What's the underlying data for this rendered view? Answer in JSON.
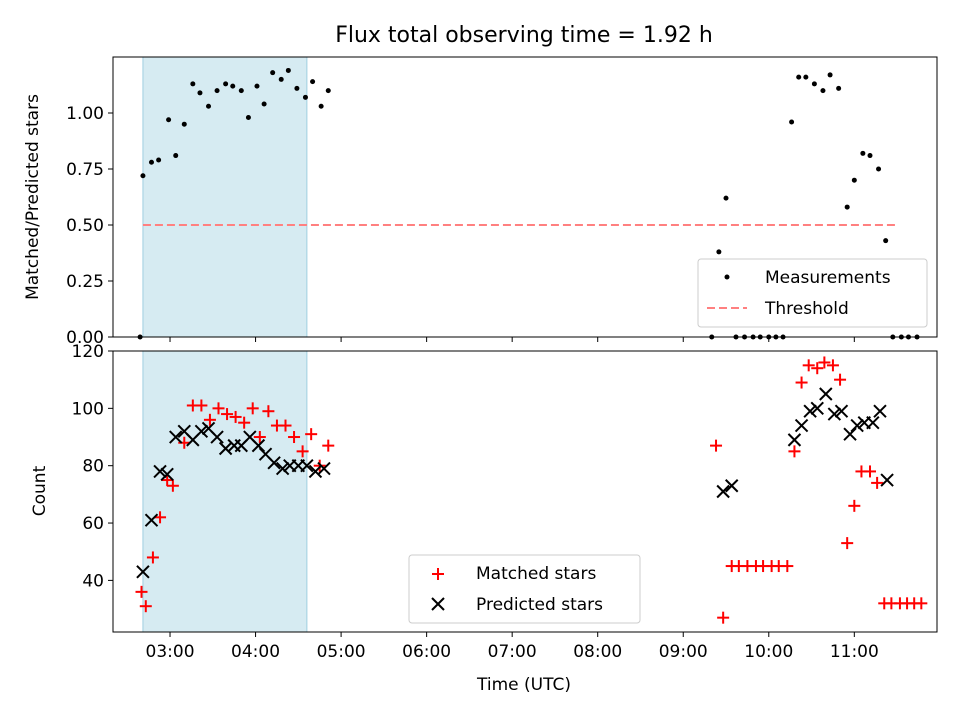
{
  "chart_data": [
    {
      "type": "scatter",
      "title": "Flux total observing time = 1.92 h",
      "xlabel": "",
      "ylabel": "Matched/Predicted stars",
      "xlim": [
        "02:20",
        "11:58"
      ],
      "ylim": [
        0,
        1.25
      ],
      "yticks": [
        "0.00",
        "0.25",
        "0.50",
        "0.75",
        "1.00"
      ],
      "shaded_span": [
        "02:41",
        "04:36"
      ],
      "threshold": {
        "name": "Threshold",
        "value": 0.5,
        "x_range": [
          "02:41",
          "11:30"
        ],
        "color": "#ff8080"
      },
      "legend": {
        "placement": "lower-right",
        "entries": [
          "Measurements",
          "Threshold"
        ]
      },
      "series": [
        {
          "name": "Measurements",
          "color": "#000000",
          "points": [
            [
              "02:39",
              0.0
            ],
            [
              "02:41",
              0.72
            ],
            [
              "02:47",
              0.78
            ],
            [
              "02:52",
              0.79
            ],
            [
              "02:59",
              0.97
            ],
            [
              "03:04",
              0.81
            ],
            [
              "03:10",
              0.95
            ],
            [
              "03:16",
              1.13
            ],
            [
              "03:21",
              1.09
            ],
            [
              "03:27",
              1.03
            ],
            [
              "03:33",
              1.1
            ],
            [
              "03:39",
              1.13
            ],
            [
              "03:44",
              1.12
            ],
            [
              "03:50",
              1.1
            ],
            [
              "03:55",
              0.98
            ],
            [
              "04:01",
              1.12
            ],
            [
              "04:06",
              1.04
            ],
            [
              "04:12",
              1.18
            ],
            [
              "04:18",
              1.15
            ],
            [
              "04:23",
              1.19
            ],
            [
              "04:29",
              1.11
            ],
            [
              "04:35",
              1.07
            ],
            [
              "04:40",
              1.14
            ],
            [
              "04:46",
              1.03
            ],
            [
              "04:51",
              1.1
            ],
            [
              "09:20",
              0.0
            ],
            [
              "09:25",
              0.38
            ],
            [
              "09:30",
              0.62
            ],
            [
              "09:37",
              0.0
            ],
            [
              "09:43",
              0.0
            ],
            [
              "09:49",
              0.0
            ],
            [
              "09:54",
              0.0
            ],
            [
              "10:00",
              0.0
            ],
            [
              "10:05",
              0.0
            ],
            [
              "10:10",
              0.0
            ],
            [
              "10:16",
              0.96
            ],
            [
              "10:21",
              1.16
            ],
            [
              "10:26",
              1.16
            ],
            [
              "10:32",
              1.13
            ],
            [
              "10:38",
              1.1
            ],
            [
              "10:43",
              1.17
            ],
            [
              "10:49",
              1.11
            ],
            [
              "10:55",
              0.58
            ],
            [
              "11:00",
              0.7
            ],
            [
              "11:06",
              0.82
            ],
            [
              "11:11",
              0.81
            ],
            [
              "11:17",
              0.75
            ],
            [
              "11:22",
              0.43
            ],
            [
              "11:27",
              0.0
            ],
            [
              "11:33",
              0.0
            ],
            [
              "11:38",
              0.0
            ],
            [
              "11:44",
              0.0
            ]
          ]
        }
      ]
    },
    {
      "type": "scatter",
      "title": "",
      "xlabel": "Time (UTC)",
      "ylabel": "Count",
      "xlim": [
        "02:20",
        "11:58"
      ],
      "ylim": [
        22,
        120
      ],
      "yticks": [
        "40",
        "60",
        "80",
        "100",
        "120"
      ],
      "xticks": [
        "03:00",
        "04:00",
        "05:00",
        "06:00",
        "07:00",
        "08:00",
        "09:00",
        "10:00",
        "11:00"
      ],
      "shaded_span": [
        "02:41",
        "04:36"
      ],
      "legend": {
        "placement": "lower-center",
        "entries": [
          "Matched stars",
          "Predicted stars"
        ]
      },
      "series": [
        {
          "name": "Matched stars",
          "marker": "+",
          "color": "#ff0000",
          "points": [
            [
              "02:40",
              36
            ],
            [
              "02:43",
              31
            ],
            [
              "02:48",
              48
            ],
            [
              "02:53",
              62
            ],
            [
              "02:58",
              75
            ],
            [
              "03:02",
              73
            ],
            [
              "03:10",
              88
            ],
            [
              "03:16",
              101
            ],
            [
              "03:22",
              101
            ],
            [
              "03:28",
              96
            ],
            [
              "03:34",
              100
            ],
            [
              "03:40",
              98
            ],
            [
              "03:46",
              97
            ],
            [
              "03:52",
              95
            ],
            [
              "03:58",
              100
            ],
            [
              "04:03",
              90
            ],
            [
              "04:09",
              99
            ],
            [
              "04:15",
              94
            ],
            [
              "04:21",
              94
            ],
            [
              "04:27",
              90
            ],
            [
              "04:33",
              85
            ],
            [
              "04:39",
              91
            ],
            [
              "04:45",
              80
            ],
            [
              "04:51",
              87
            ],
            [
              "09:23",
              87
            ],
            [
              "09:28",
              27
            ],
            [
              "09:34",
              45
            ],
            [
              "09:39",
              45
            ],
            [
              "09:45",
              45
            ],
            [
              "09:51",
              45
            ],
            [
              "09:56",
              45
            ],
            [
              "10:02",
              45
            ],
            [
              "10:07",
              45
            ],
            [
              "10:13",
              45
            ],
            [
              "10:18",
              85
            ],
            [
              "10:23",
              109
            ],
            [
              "10:28",
              115
            ],
            [
              "10:34",
              114
            ],
            [
              "10:39",
              116
            ],
            [
              "10:45",
              115
            ],
            [
              "10:50",
              110
            ],
            [
              "10:55",
              53
            ],
            [
              "11:00",
              66
            ],
            [
              "11:05",
              78
            ],
            [
              "11:11",
              78
            ],
            [
              "11:16",
              74
            ],
            [
              "11:21",
              32
            ],
            [
              "11:26",
              32
            ],
            [
              "11:32",
              32
            ],
            [
              "11:37",
              32
            ],
            [
              "11:42",
              32
            ],
            [
              "11:47",
              32
            ]
          ]
        },
        {
          "name": "Predicted stars",
          "marker": "x",
          "color": "#000000",
          "points": [
            [
              "02:41",
              43
            ],
            [
              "02:47",
              61
            ],
            [
              "02:53",
              78
            ],
            [
              "02:58",
              77
            ],
            [
              "03:04",
              90
            ],
            [
              "03:10",
              92
            ],
            [
              "03:16",
              89
            ],
            [
              "03:22",
              92
            ],
            [
              "03:27",
              93
            ],
            [
              "03:33",
              90
            ],
            [
              "03:39",
              86
            ],
            [
              "03:45",
              87
            ],
            [
              "03:50",
              87
            ],
            [
              "03:56",
              90
            ],
            [
              "04:02",
              87
            ],
            [
              "04:07",
              84
            ],
            [
              "04:13",
              81
            ],
            [
              "04:19",
              79
            ],
            [
              "04:24",
              80
            ],
            [
              "04:30",
              80
            ],
            [
              "04:36",
              80
            ],
            [
              "04:42",
              78
            ],
            [
              "04:48",
              79
            ],
            [
              "09:28",
              71
            ],
            [
              "09:34",
              73
            ],
            [
              "10:18",
              89
            ],
            [
              "10:23",
              94
            ],
            [
              "10:29",
              99
            ],
            [
              "10:34",
              100
            ],
            [
              "10:40",
              105
            ],
            [
              "10:46",
              98
            ],
            [
              "10:51",
              99
            ],
            [
              "10:57",
              91
            ],
            [
              "11:02",
              94
            ],
            [
              "11:07",
              95
            ],
            [
              "11:13",
              95
            ],
            [
              "11:18",
              99
            ],
            [
              "11:23",
              75
            ]
          ]
        }
      ]
    }
  ]
}
